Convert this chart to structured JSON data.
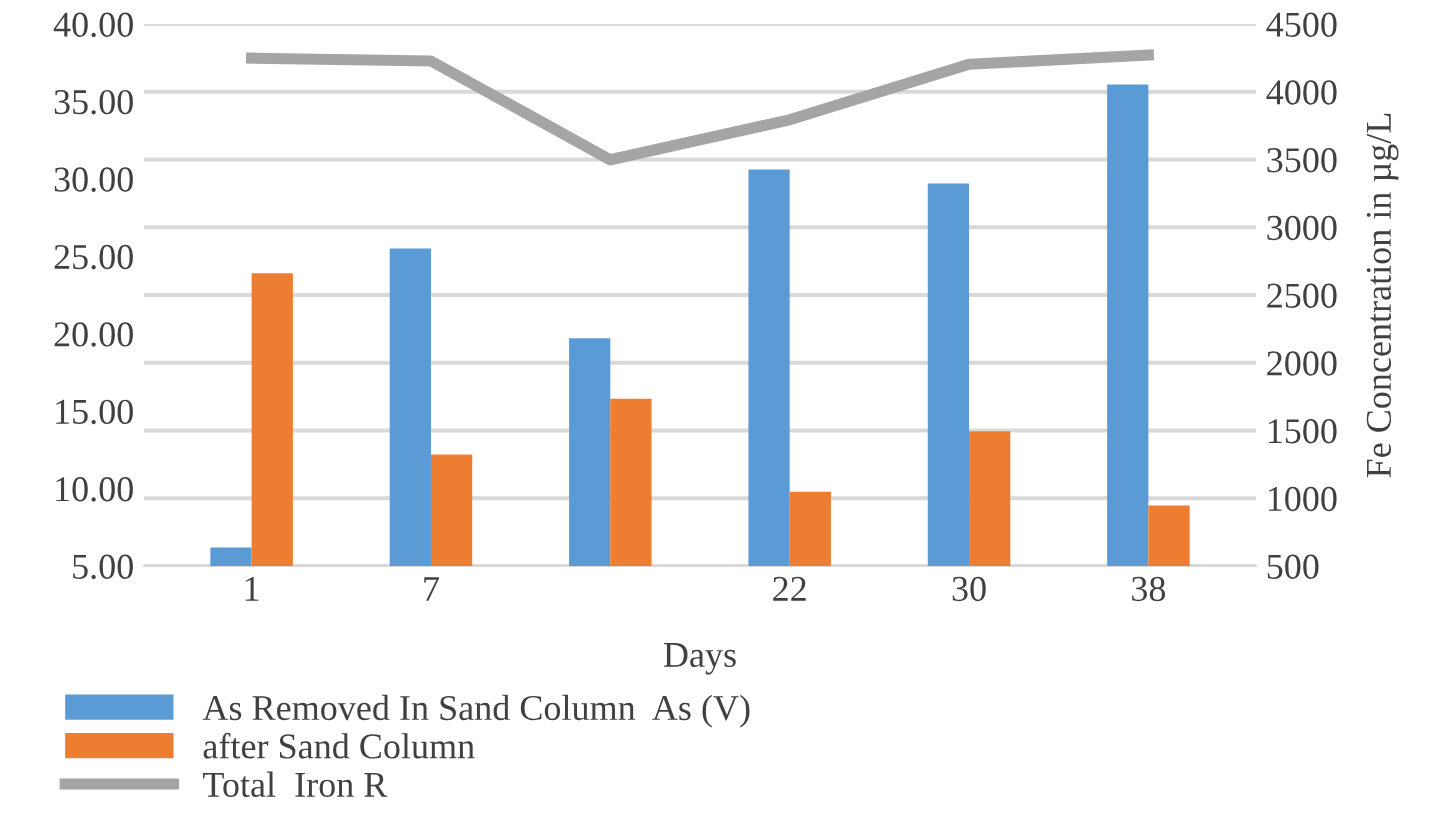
{
  "chart_data": {
    "type": "bar",
    "xlabel": "Days",
    "y2label": "Fe Concentration in µg/L",
    "categories": [
      "1",
      "7",
      null,
      "22",
      "30",
      "38"
    ],
    "series": [
      {
        "name": "As Removed In Sand Column  As (V)",
        "color": "#5b9bd5",
        "values": [
          6.2,
          25.5,
          19.7,
          30.6,
          29.7,
          36.1
        ]
      },
      {
        "name": "after Sand Column",
        "color": "#ed7d31",
        "values": [
          23.9,
          12.2,
          15.8,
          9.8,
          13.7,
          8.9
        ]
      },
      {
        "name": "Total  Iron R",
        "type": "line",
        "axis": "y2",
        "color": "#a5a5a5",
        "values": [
          4248,
          4227,
          3498,
          3793,
          4203,
          4271
        ]
      }
    ],
    "ylim": [
      5,
      40
    ],
    "yticks": [
      {
        "value": 5,
        "label": "5.00"
      },
      {
        "value": 10,
        "label": "10.00"
      },
      {
        "value": 15,
        "label": "15.00"
      },
      {
        "value": 20,
        "label": "20.00"
      },
      {
        "value": 25,
        "label": "25.00"
      },
      {
        "value": 30,
        "label": "30.00"
      },
      {
        "value": 35,
        "label": "35.00"
      },
      {
        "value": 40,
        "label": "40.00"
      }
    ],
    "y2lim": [
      500,
      4500
    ],
    "y2ticks": [
      500,
      1000,
      1500,
      2000,
      2500,
      3000,
      3500,
      4000,
      4500
    ],
    "grid": "y2",
    "legend": "bottom left"
  }
}
